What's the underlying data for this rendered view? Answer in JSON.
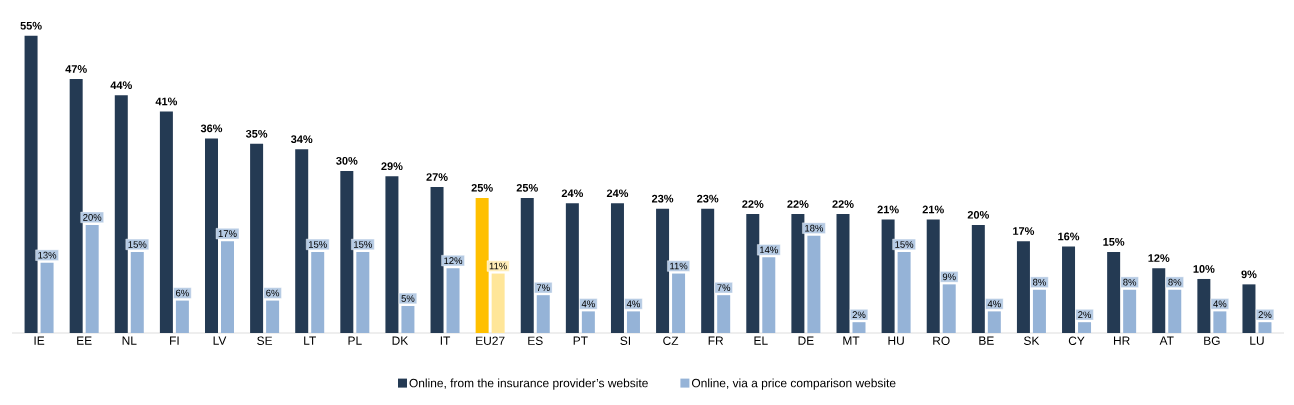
{
  "chart_data": {
    "type": "bar",
    "categories": [
      "IE",
      "EE",
      "NL",
      "FI",
      "LV",
      "SE",
      "LT",
      "PL",
      "DK",
      "IT",
      "EU27",
      "ES",
      "PT",
      "SI",
      "CZ",
      "FR",
      "EL",
      "DE",
      "MT",
      "HU",
      "RO",
      "BE",
      "SK",
      "CY",
      "HR",
      "AT",
      "BG",
      "LU"
    ],
    "series": [
      {
        "name": "Online, from the insurance provider’s website",
        "color": "#243a53",
        "colors": [
          "#243a53",
          "#243a53",
          "#243a53",
          "#243a53",
          "#243a53",
          "#243a53",
          "#243a53",
          "#243a53",
          "#243a53",
          "#243a53",
          "#ffc000",
          "#243a53",
          "#243a53",
          "#243a53",
          "#243a53",
          "#243a53",
          "#243a53",
          "#243a53",
          "#243a53",
          "#243a53",
          "#243a53",
          "#243a53",
          "#243a53",
          "#243a53",
          "#243a53",
          "#243a53",
          "#243a53",
          "#243a53"
        ],
        "values": [
          55,
          47,
          44,
          41,
          36,
          35,
          34,
          30,
          29,
          27,
          25,
          25,
          24,
          24,
          23,
          23,
          22,
          22,
          22,
          21,
          21,
          20,
          17,
          16,
          15,
          12,
          10,
          9
        ],
        "value_labels": [
          "55%",
          "47%",
          "44%",
          "41%",
          "36%",
          "35%",
          "34%",
          "30%",
          "29%",
          "27%",
          "25%",
          "25%",
          "24%",
          "24%",
          "23%",
          "23%",
          "22%",
          "22%",
          "22%",
          "21%",
          "21%",
          "20%",
          "17%",
          "16%",
          "15%",
          "12%",
          "10%",
          "9%"
        ]
      },
      {
        "name": "Online, via a price comparison website",
        "color": "#95b3d7",
        "colors": [
          "#95b3d7",
          "#95b3d7",
          "#95b3d7",
          "#95b3d7",
          "#95b3d7",
          "#95b3d7",
          "#95b3d7",
          "#95b3d7",
          "#95b3d7",
          "#95b3d7",
          "#ffe699",
          "#95b3d7",
          "#95b3d7",
          "#95b3d7",
          "#95b3d7",
          "#95b3d7",
          "#95b3d7",
          "#95b3d7",
          "#95b3d7",
          "#95b3d7",
          "#95b3d7",
          "#95b3d7",
          "#95b3d7",
          "#95b3d7",
          "#95b3d7",
          "#95b3d7",
          "#95b3d7",
          "#95b3d7"
        ],
        "values": [
          13,
          20,
          15,
          6,
          17,
          6,
          15,
          15,
          5,
          12,
          11,
          7,
          4,
          4,
          11,
          7,
          14,
          18,
          2,
          15,
          9,
          4,
          8,
          2,
          8,
          8,
          4,
          2
        ],
        "value_labels": [
          "13%",
          "20%",
          "15%",
          "6%",
          "17%",
          "6%",
          "15%",
          "15%",
          "5%",
          "12%",
          "11%",
          "7%",
          "4%",
          "4%",
          "11%",
          "7%",
          "14%",
          "18%",
          "2%",
          "15%",
          "9%",
          "4%",
          "8%",
          "2%",
          "8%",
          "8%",
          "4%",
          "2%"
        ]
      }
    ],
    "legend": "bottom"
  }
}
